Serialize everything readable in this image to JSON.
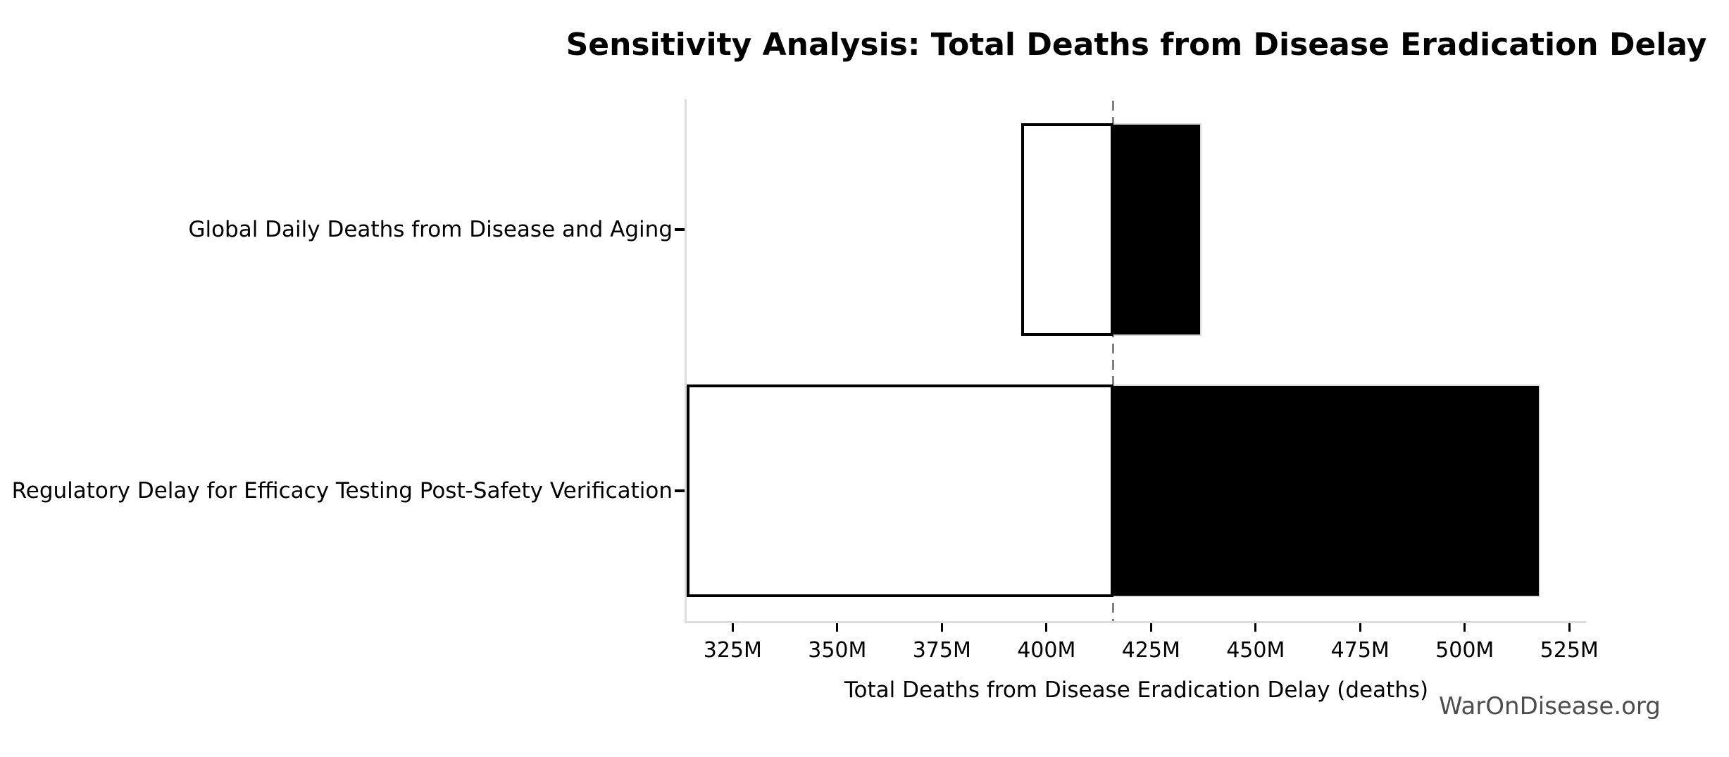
{
  "watermark": "WarOnDisease.org",
  "chart_data": {
    "type": "bar",
    "subtype": "tornado-sensitivity",
    "orientation": "horizontal",
    "title": "Sensitivity Analysis: Total Deaths from Disease Eradication Delay",
    "xlabel": "Total Deaths from Disease Eradication Delay (deaths)",
    "ylabel": "",
    "unit": "M",
    "value_scale": "millions of deaths",
    "baseline_value": 416,
    "categories": [
      "Global Daily Deaths from Disease and Aging",
      "Regulatory Delay for Efficacy Testing Post-Safety Verification"
    ],
    "rows": [
      {
        "label": "Global Daily Deaths from Disease and Aging",
        "low": 394,
        "high": 437
      },
      {
        "label": "Regulatory Delay for Efficacy Testing Post-Safety Verification",
        "low": 314,
        "high": 518
      }
    ],
    "xlim": [
      314,
      529
    ],
    "xticks": [
      325,
      350,
      375,
      400,
      425,
      450,
      475,
      500,
      525
    ],
    "xtick_labels": [
      "325M",
      "350M",
      "375M",
      "400M",
      "425M",
      "450M",
      "475M",
      "500M",
      "525M"
    ],
    "grid": false,
    "legend": false,
    "colors": {
      "low_fill": "#ffffff",
      "low_edge": "#000000",
      "high_fill": "#000000",
      "high_edge": "#d9d9d9",
      "baseline_line": "#808080",
      "spine": "#dcdcdc",
      "tick": "#000000",
      "text": "#000000",
      "watermark": "#4d4d4d",
      "background": "#ffffff"
    }
  }
}
